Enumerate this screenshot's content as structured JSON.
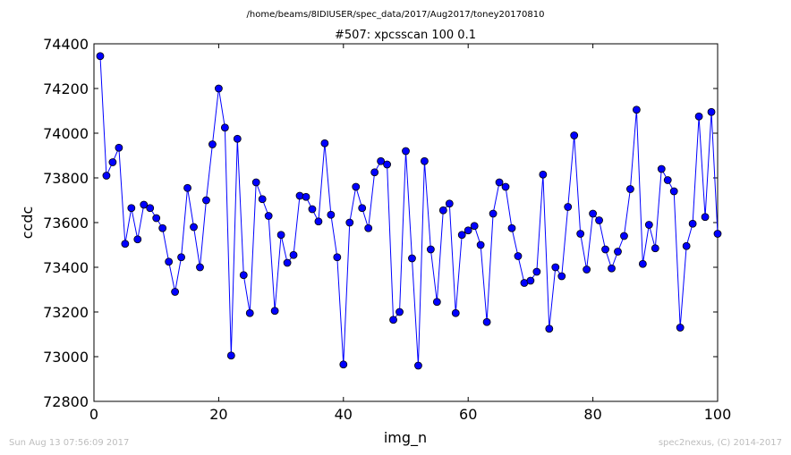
{
  "header": {
    "path": "/home/beams/8IDIUSER/spec_data/2017/Aug2017/toney20170810"
  },
  "footer": {
    "timestamp": "Sun Aug 13 07:56:09 2017",
    "credit": "spec2nexus, (C) 2014-2017"
  },
  "colors": {
    "series": "#0000ff",
    "axis": "#000000",
    "background": "#ffffff"
  },
  "chart_data": {
    "type": "line",
    "title": "#507: xpcsscan 100 0.1",
    "xlabel": "img_n",
    "ylabel": "ccdc",
    "xlim": [
      0,
      100
    ],
    "ylim": [
      72800,
      74400
    ],
    "xticks": [
      "0",
      "20",
      "40",
      "60",
      "80",
      "100"
    ],
    "yticks": [
      "72800",
      "73000",
      "73200",
      "73400",
      "73600",
      "73800",
      "74000",
      "74200",
      "74400"
    ],
    "grid": false,
    "marker": "circle",
    "series": [
      {
        "x": [
          1,
          2,
          3,
          4,
          5,
          6,
          7,
          8,
          9,
          10,
          11,
          12,
          13,
          14,
          15,
          16,
          17,
          18,
          19,
          20,
          21,
          22,
          23,
          24,
          25,
          26,
          27,
          28,
          29,
          30,
          31,
          32,
          33,
          34,
          35,
          36,
          37,
          38,
          39,
          40,
          41,
          42,
          43,
          44,
          45,
          46,
          47,
          48,
          49,
          50,
          51,
          52,
          53,
          54,
          55,
          56,
          57,
          58,
          59,
          60,
          61,
          62,
          63,
          64,
          65,
          66,
          67,
          68,
          69,
          70,
          71,
          72,
          73,
          74,
          75,
          76,
          77,
          78,
          79,
          80,
          81,
          82,
          83,
          84,
          85,
          86,
          87,
          88,
          89,
          90,
          91,
          92,
          93,
          94,
          95,
          96,
          97,
          98,
          99,
          100
        ],
        "values": [
          74345,
          73810,
          73870,
          73935,
          73505,
          73665,
          73525,
          73680,
          73665,
          73620,
          73575,
          73425,
          73290,
          73445,
          73755,
          73580,
          73400,
          73700,
          73950,
          74200,
          74025,
          73005,
          73975,
          73365,
          73195,
          73780,
          73705,
          73630,
          73205,
          73545,
          73420,
          73455,
          73720,
          73715,
          73660,
          73605,
          73955,
          73635,
          73445,
          72965,
          73600,
          73760,
          73665,
          73575,
          73825,
          73875,
          73860,
          73165,
          73200,
          73920,
          73440,
          72960,
          73875,
          73480,
          73245,
          73655,
          73685,
          73195,
          73545,
          73565,
          73585,
          73500,
          73155,
          73640,
          73780,
          73760,
          73575,
          73450,
          73330,
          73340,
          73380,
          73815,
          73125,
          73400,
          73360,
          73670,
          73990,
          73550,
          73390,
          73640,
          73610,
          73480,
          73395,
          73470,
          73540,
          73750,
          74105,
          73415,
          73590,
          73485,
          73840,
          73790,
          73740,
          73130,
          73495,
          73595,
          74075,
          73625,
          74095,
          73550
        ]
      }
    ]
  }
}
